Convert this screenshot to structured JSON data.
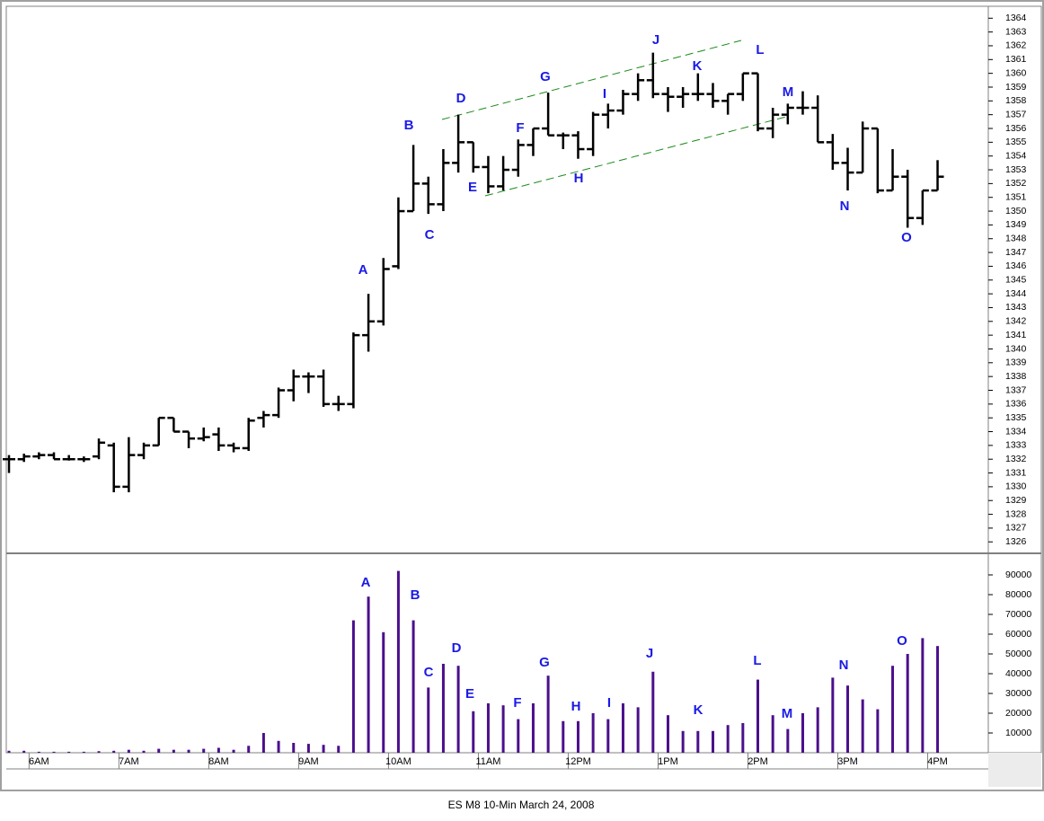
{
  "chart_data": [
    {
      "type": "ohlc",
      "title": "ES M8 10-Min March 24, 2008",
      "categories": [
        null,
        null,
        "6AM",
        null,
        null,
        null,
        null,
        null,
        "7AM",
        null,
        null,
        null,
        null,
        null,
        "8AM",
        null,
        null,
        null,
        null,
        null,
        "9AM",
        null,
        null,
        null,
        null,
        null,
        "10AM",
        null,
        null,
        null,
        null,
        null,
        "11AM",
        null,
        null,
        null,
        null,
        null,
        "12PM",
        null,
        null,
        null,
        null,
        null,
        "1PM",
        null,
        null,
        null,
        null,
        null,
        "2PM",
        null,
        null,
        null,
        null,
        null,
        "3PM",
        null,
        null,
        null,
        null,
        null,
        "4PM"
      ],
      "open": [
        1332,
        1332,
        1332.2,
        1332.3,
        1332,
        1332,
        1332.2,
        1333,
        1330,
        1332.3,
        1333,
        1335,
        1334,
        1333.5,
        1333.8,
        1333,
        1332.8,
        1335,
        1335.2,
        1337,
        1338,
        1338,
        1336,
        1336,
        1341,
        1342,
        1346,
        1350,
        1352,
        1350.5,
        1353.5,
        1355,
        1353.2,
        1351.8,
        1353,
        1354.8,
        1356,
        1355.5,
        1355.5,
        1354.5,
        1357,
        1357.3,
        1358.5,
        1359.5,
        1358.5,
        1358.3,
        1358.5,
        1358.5,
        1358,
        1358.5,
        1360,
        1356,
        1357,
        1357.5,
        1357.5,
        1355,
        1353.5,
        1352.8,
        1356,
        1351.5,
        1352.5,
        1349.5,
        1351.5
      ],
      "high": [
        1332.3,
        1332.4,
        1332.5,
        1332.5,
        1332.3,
        1332.2,
        1333.5,
        1333.2,
        1333.6,
        1333.2,
        1335,
        1335,
        1334,
        1334.3,
        1334.3,
        1333.2,
        1335,
        1335.5,
        1337.2,
        1338.5,
        1338.3,
        1338.5,
        1336.6,
        1341.2,
        1344,
        1346.6,
        1351,
        1354.8,
        1352.5,
        1354.5,
        1357,
        1355,
        1354,
        1354,
        1355.2,
        1356,
        1358.6,
        1355.7,
        1355.8,
        1357.2,
        1357.8,
        1358.8,
        1360,
        1361.5,
        1359,
        1359,
        1360,
        1359.3,
        1358.5,
        1360,
        1360,
        1357.5,
        1357.8,
        1358.7,
        1358.4,
        1355.6,
        1354.6,
        1356.5,
        1356,
        1354.5,
        1353,
        1351.5,
        1353.7
      ],
      "low": [
        1331,
        1331.8,
        1332,
        1332,
        1331.9,
        1331.8,
        1332,
        1329.6,
        1329.6,
        1332,
        1333,
        1334,
        1332.8,
        1333.3,
        1332.6,
        1332.5,
        1332.6,
        1334.3,
        1335,
        1336.2,
        1336.8,
        1335.8,
        1335.5,
        1335.7,
        1339.8,
        1341.7,
        1345.8,
        1350,
        1349.8,
        1350,
        1352.8,
        1352.8,
        1351.3,
        1351.5,
        1352.5,
        1354,
        1355.5,
        1354.5,
        1353.8,
        1354,
        1356,
        1357,
        1358,
        1358.2,
        1357.2,
        1357.5,
        1358,
        1357.5,
        1357,
        1358,
        1355.8,
        1355.3,
        1356.3,
        1357,
        1355,
        1353,
        1351.5,
        1352.8,
        1351.3,
        1351.5,
        1348.8,
        1349,
        1351.5
      ],
      "close": [
        1332,
        1332.2,
        1332.3,
        1332,
        1332,
        1332,
        1333.2,
        1330,
        1332.3,
        1333,
        1335,
        1334,
        1333.5,
        1333.6,
        1333,
        1332.8,
        1334.8,
        1335.2,
        1337,
        1338,
        1338,
        1336,
        1336,
        1341,
        1342,
        1345.8,
        1350,
        1352,
        1350.5,
        1353.5,
        1355,
        1353.2,
        1351.8,
        1353,
        1354.8,
        1356,
        1355.5,
        1355.5,
        1354.5,
        1357,
        1357.3,
        1358.5,
        1359.5,
        1358.5,
        1358.3,
        1358.5,
        1358.5,
        1358,
        1358.5,
        1360,
        1356,
        1357,
        1357.5,
        1357.5,
        1355,
        1353.5,
        1352.8,
        1356,
        1351.5,
        1352.5,
        1349.5,
        1351.5,
        1352.5
      ],
      "color": "#000000",
      "ylim": [
        1325.3,
        1364.8
      ],
      "yticks": [
        1326,
        1327,
        1328,
        1329,
        1330,
        1331,
        1332,
        1333,
        1334,
        1335,
        1336,
        1337,
        1338,
        1339,
        1340,
        1341,
        1342,
        1343,
        1344,
        1345,
        1346,
        1347,
        1348,
        1349,
        1350,
        1351,
        1352,
        1353,
        1354,
        1355,
        1356,
        1357,
        1358,
        1359,
        1360,
        1361,
        1362,
        1363,
        1364
      ],
      "annotations": [
        "A",
        "B",
        "C",
        "D",
        "E",
        "F",
        "G",
        "H",
        "I",
        "J",
        "K",
        "L",
        "M",
        "N",
        "O"
      ]
    },
    {
      "type": "bar",
      "values": [
        1000,
        1000,
        500,
        500,
        500,
        500,
        800,
        1000,
        1500,
        1000,
        2000,
        1500,
        1500,
        2000,
        2500,
        1500,
        3500,
        10000,
        6000,
        5000,
        4500,
        4000,
        3500,
        67000,
        79000,
        61000,
        92000,
        67000,
        33000,
        45000,
        44000,
        21000,
        25000,
        24000,
        17000,
        25000,
        39000,
        16000,
        16000,
        20000,
        17000,
        25000,
        23000,
        41000,
        19000,
        11000,
        11000,
        11000,
        14000,
        15000,
        37000,
        19000,
        12000,
        20000,
        23000,
        38000,
        34000,
        27000,
        22000,
        44000,
        50000,
        58000,
        54000
      ],
      "color": "#4b0f8c",
      "ylim": [
        0,
        100000
      ],
      "yticks": [
        10000,
        20000,
        30000,
        40000,
        50000,
        60000,
        70000,
        80000,
        90000
      ],
      "annotations": [
        "A",
        "B",
        "C",
        "D",
        "E",
        "F",
        "G",
        "H",
        "I",
        "J",
        "K",
        "L",
        "M",
        "N",
        "O"
      ]
    }
  ]
}
